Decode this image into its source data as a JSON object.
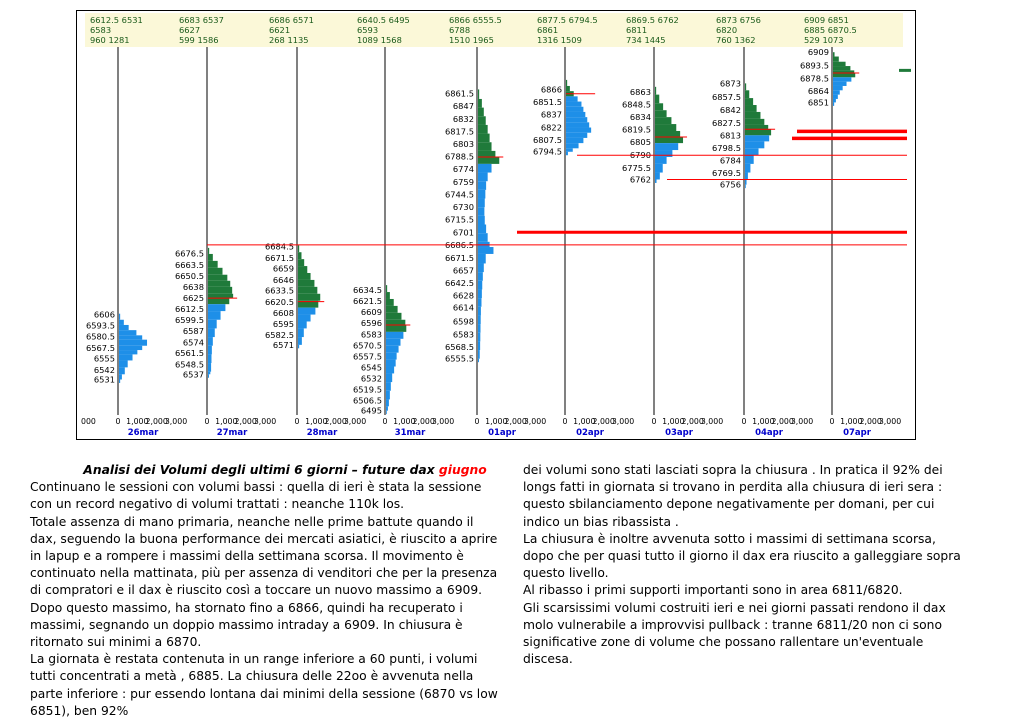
{
  "chart_data": {
    "type": "volume-profile",
    "title": "",
    "days": [
      {
        "date": "26mar",
        "header": [
          "6612.5 6531",
          "6583",
          "960 1281"
        ],
        "levels": [
          "6606",
          "6593.5",
          "6580.5",
          "6567.5",
          "6555",
          "6542",
          "6531"
        ],
        "profile": [
          [
            6607,
            60
          ],
          [
            6600,
            250
          ],
          [
            6594,
            500
          ],
          [
            6588,
            900
          ],
          [
            6582,
            1200
          ],
          [
            6577,
            1450
          ],
          [
            6570,
            1200
          ],
          [
            6565,
            950
          ],
          [
            6560,
            700
          ],
          [
            6553,
            450
          ],
          [
            6545,
            300
          ],
          [
            6537,
            150
          ],
          [
            6531,
            60
          ]
        ],
        "poc": null
      },
      {
        "date": "27mar",
        "header": [
          "6683 6537",
          "6627",
          "599 1586"
        ],
        "levels": [
          "6676.5",
          "6663.5",
          "6650.5",
          "6638",
          "6625",
          "6612.5",
          "6599.5",
          "6587",
          "6574",
          "6561.5",
          "6548.5",
          "6537"
        ],
        "profile": [
          [
            6683,
            60
          ],
          [
            6676,
            250
          ],
          [
            6668,
            500
          ],
          [
            6660,
            750
          ],
          [
            6652,
            1000
          ],
          [
            6645,
            1150
          ],
          [
            6638,
            1250
          ],
          [
            6630,
            1300
          ],
          [
            6625,
            1100
          ],
          [
            6618,
            900
          ],
          [
            6610,
            650
          ],
          [
            6600,
            450
          ],
          [
            6590,
            350
          ],
          [
            6580,
            250
          ],
          [
            6570,
            200
          ],
          [
            6560,
            180
          ],
          [
            6550,
            160
          ],
          [
            6540,
            120
          ],
          [
            6537,
            50
          ]
        ],
        "poc": 6625
      },
      {
        "date": "28mar",
        "header": [
          "6686 6571",
          "6621",
          "268 1135"
        ],
        "levels": [
          "6684.5",
          "6671.5",
          "6659",
          "6646",
          "6633.5",
          "6620.5",
          "6608",
          "6595",
          "6582.5",
          "6571"
        ],
        "profile": [
          [
            6686,
            60
          ],
          [
            6678,
            180
          ],
          [
            6670,
            320
          ],
          [
            6662,
            480
          ],
          [
            6654,
            650
          ],
          [
            6646,
            850
          ],
          [
            6638,
            1000
          ],
          [
            6630,
            1150
          ],
          [
            6622,
            1050
          ],
          [
            6614,
            900
          ],
          [
            6606,
            650
          ],
          [
            6598,
            450
          ],
          [
            6590,
            300
          ],
          [
            6580,
            200
          ],
          [
            6571,
            60
          ]
        ],
        "poc": 6621
      },
      {
        "date": "31mar",
        "header": [
          "6640.5 6495",
          "6593",
          "1089 1568"
        ],
        "levels": [
          "6634.5",
          "6621.5",
          "6609",
          "6596",
          "6583",
          "6570.5",
          "6557.5",
          "6545",
          "6532",
          "6519.5",
          "6506.5",
          "6495"
        ],
        "profile": [
          [
            6640,
            60
          ],
          [
            6632,
            200
          ],
          [
            6624,
            400
          ],
          [
            6616,
            600
          ],
          [
            6608,
            800
          ],
          [
            6600,
            1000
          ],
          [
            6594,
            1050
          ],
          [
            6586,
            900
          ],
          [
            6578,
            750
          ],
          [
            6570,
            650
          ],
          [
            6562,
            550
          ],
          [
            6554,
            500
          ],
          [
            6546,
            420
          ],
          [
            6538,
            320
          ],
          [
            6528,
            250
          ],
          [
            6518,
            200
          ],
          [
            6508,
            150
          ],
          [
            6500,
            100
          ],
          [
            6495,
            40
          ]
        ],
        "poc": 6594
      },
      {
        "date": "01apr",
        "header": [
          "6866 6555.5",
          "6788",
          "1510 1965"
        ],
        "levels": [
          "6861.5",
          "6847",
          "6832",
          "6817.5",
          "6803",
          "6788.5",
          "6774",
          "6759",
          "6744.5",
          "6730",
          "6715.5",
          "6701",
          "6686.5",
          "6671.5",
          "6657",
          "6642.5",
          "6628",
          "6614",
          "6598",
          "6583",
          "6568.5",
          "6555.5"
        ],
        "profile": [
          [
            6866,
            60
          ],
          [
            6855,
            200
          ],
          [
            6845,
            300
          ],
          [
            6835,
            400
          ],
          [
            6825,
            500
          ],
          [
            6815,
            600
          ],
          [
            6805,
            700
          ],
          [
            6795,
            900
          ],
          [
            6788,
            1100
          ],
          [
            6780,
            700
          ],
          [
            6770,
            500
          ],
          [
            6760,
            420
          ],
          [
            6750,
            380
          ],
          [
            6740,
            350
          ],
          [
            6730,
            330
          ],
          [
            6720,
            350
          ],
          [
            6710,
            420
          ],
          [
            6700,
            500
          ],
          [
            6690,
            600
          ],
          [
            6684,
            800
          ],
          [
            6676,
            400
          ],
          [
            6665,
            300
          ],
          [
            6655,
            250
          ],
          [
            6645,
            220
          ],
          [
            6635,
            200
          ],
          [
            6625,
            180
          ],
          [
            6615,
            150
          ],
          [
            6605,
            140
          ],
          [
            6595,
            130
          ],
          [
            6585,
            120
          ],
          [
            6575,
            110
          ],
          [
            6565,
            90
          ],
          [
            6555,
            50
          ]
        ],
        "poc": 6788
      },
      {
        "date": "02apr",
        "header": [
          "6877.5 6794.5",
          "6861",
          "1316 1509"
        ],
        "levels": [
          "6866",
          "6851.5",
          "6837",
          "6822",
          "6807.5",
          "6794.5"
        ],
        "profile": [
          [
            6877,
            60
          ],
          [
            6870,
            200
          ],
          [
            6864,
            400
          ],
          [
            6858,
            600
          ],
          [
            6852,
            800
          ],
          [
            6846,
            900
          ],
          [
            6840,
            1000
          ],
          [
            6834,
            1100
          ],
          [
            6828,
            1200
          ],
          [
            6822,
            1300
          ],
          [
            6816,
            1100
          ],
          [
            6810,
            900
          ],
          [
            6804,
            650
          ],
          [
            6798,
            350
          ],
          [
            6794,
            100
          ]
        ],
        "poc": 6861
      },
      {
        "date": "03apr",
        "header": [
          "6869.5 6762",
          "6811",
          "734 1445"
        ],
        "levels": [
          "6863",
          "6848.5",
          "6834",
          "6819.5",
          "6805",
          "6790",
          "6775.5",
          "6762"
        ],
        "profile": [
          [
            6869,
            60
          ],
          [
            6860,
            220
          ],
          [
            6850,
            420
          ],
          [
            6842,
            600
          ],
          [
            6834,
            850
          ],
          [
            6826,
            1100
          ],
          [
            6818,
            1300
          ],
          [
            6811,
            1450
          ],
          [
            6804,
            1200
          ],
          [
            6796,
            900
          ],
          [
            6788,
            600
          ],
          [
            6780,
            400
          ],
          [
            6770,
            250
          ],
          [
            6762,
            80
          ]
        ],
        "poc": 6811
      },
      {
        "date": "04apr",
        "header": [
          "6873 6756",
          "6820",
          "760 1362"
        ],
        "levels": [
          "6873",
          "6857.5",
          "6842",
          "6827.5",
          "6813",
          "6798.5",
          "6784",
          "6769.5",
          "6756"
        ],
        "profile": [
          [
            6873,
            60
          ],
          [
            6865,
            220
          ],
          [
            6856,
            420
          ],
          [
            6848,
            600
          ],
          [
            6840,
            800
          ],
          [
            6832,
            1000
          ],
          [
            6825,
            1200
          ],
          [
            6820,
            1350
          ],
          [
            6813,
            1250
          ],
          [
            6806,
            1000
          ],
          [
            6798,
            700
          ],
          [
            6790,
            450
          ],
          [
            6780,
            280
          ],
          [
            6770,
            150
          ],
          [
            6762,
            80
          ],
          [
            6756,
            40
          ]
        ],
        "poc": 6820
      },
      {
        "date": "07apr",
        "header": [
          "6909 6851",
          "6885 6870.5",
          "529 1073"
        ],
        "levels": [
          "6909",
          "6893.5",
          "6878.5",
          "6864",
          "6851"
        ],
        "profile": [
          [
            6909,
            80
          ],
          [
            6904,
            300
          ],
          [
            6898,
            650
          ],
          [
            6893,
            900
          ],
          [
            6888,
            1100
          ],
          [
            6885,
            1150
          ],
          [
            6880,
            950
          ],
          [
            6875,
            700
          ],
          [
            6870,
            500
          ],
          [
            6865,
            350
          ],
          [
            6860,
            250
          ],
          [
            6855,
            150
          ],
          [
            6851,
            60
          ]
        ],
        "poc": 6885
      }
    ],
    "x_tick_labels": [
      "0",
      "1,000",
      "2,000",
      "3,000"
    ],
    "first_axis_label": "000",
    "volume_max": 3000,
    "price_range": [
      6490,
      6915
    ],
    "support_lines": [
      6813,
      6701
    ],
    "reference_lines": [
      6790,
      6762,
      6686.5
    ],
    "colors": {
      "upper": "#1f7a3a",
      "lower": "#1e8fe8",
      "poc": "#ff0000",
      "grid": "#000000",
      "date": "#0000cc",
      "header_bg": "#fbf8d8",
      "header_text": "#1a5a1a"
    }
  },
  "article": {
    "title": "Analisi dei Volumi degli ultimi 6 giorni – future dax ",
    "title_accent": "giugno",
    "left_paragraphs": [
      "Continuano le sessioni con volumi bassi : quella di ieri è stata la sessione con un record negativo di volumi trattati : neanche 110k los.",
      "Totale assenza di mano primaria, neanche nelle prime battute quando il dax, seguendo la buona performance dei mercati asiatici, è riuscito a aprire in lapup e a rompere i massimi della settimana scorsa. Il movimento è continuato nella mattinata, più per assenza di venditori che per la presenza di compratori e il dax è riuscito così a toccare un nuovo massimo a 6909. Dopo questo massimo, ha stornato fino a 6866, quindi ha recuperato i massimi, segnando un doppio massimo intraday a 6909. In chiusura è ritornato sui minimi a 6870.",
      "La giornata è restata contenuta in un range inferiore a 60 punti, i volumi tutti concentrati a metà , 6885. La chiusura delle 22oo è avvenuta nella parte inferiore : pur essendo lontana dai minimi della sessione (6870 vs low 6851), ben 92%"
    ],
    "right_paragraphs": [
      "dei volumi sono stati lasciati sopra la chiusura . In pratica il 92% dei longs fatti in giornata si trovano in perdita alla chiusura di ieri sera : questo sbilanciamento depone negativamente per domani, per cui indico un bias ribassista .",
      "La chiusura è inoltre avvenuta sotto i massimi di settimana scorsa, dopo che per quasi tutto il giorno il dax era riuscito a galleggiare sopra questo livello.",
      "Al ribasso i primi supporti importanti  sono in area 6811/6820.",
      "Gli scarsissimi volumi costruiti ieri e nei giorni passati rendono il dax molo vulnerabile a improvvisi pullback : tranne 6811/20 non ci sono significative zone di volume che possano rallentare un'eventuale discesa."
    ]
  }
}
